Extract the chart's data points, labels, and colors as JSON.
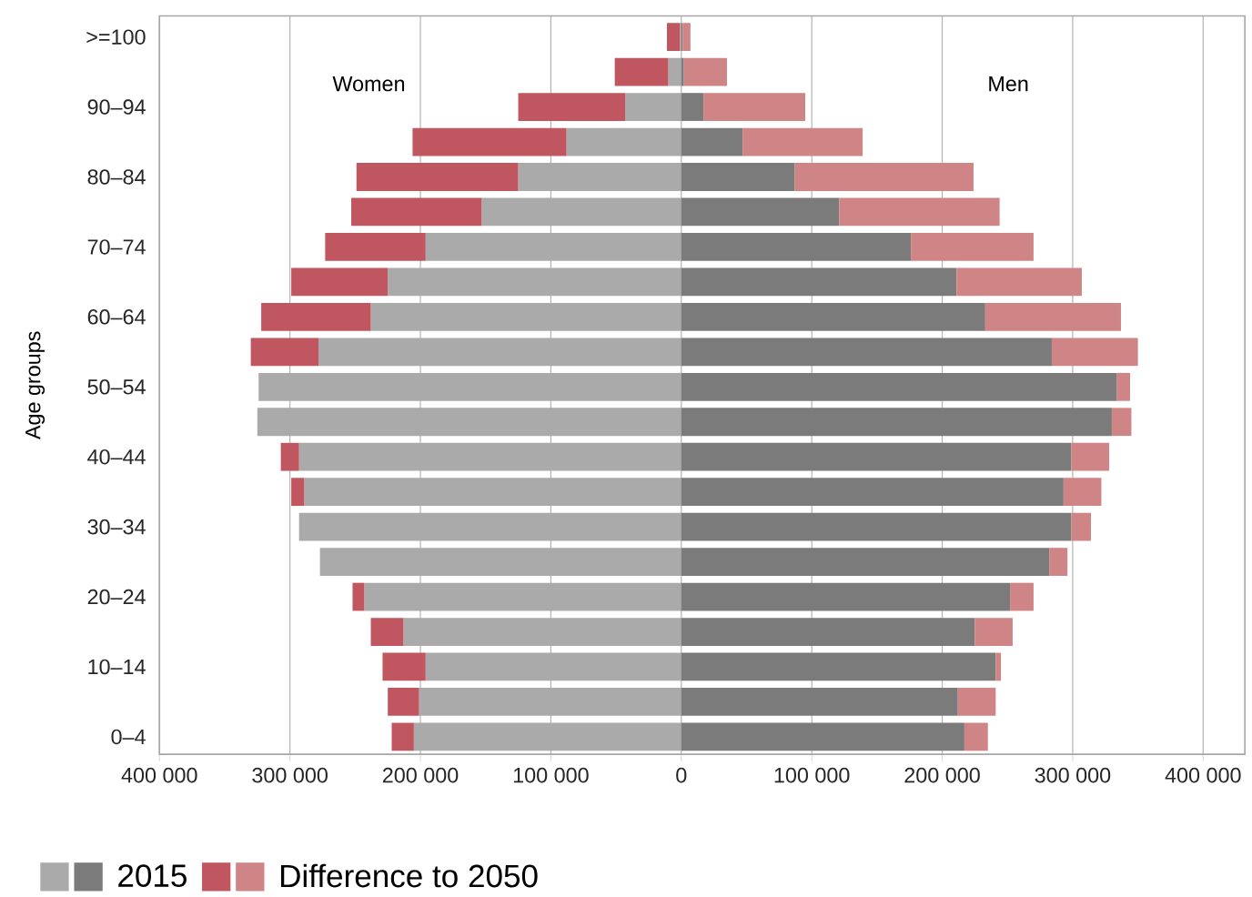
{
  "chart_data": {
    "type": "bar",
    "orientation": "horizontal",
    "stacked": true,
    "ylabel": "Age groups",
    "categories": [
      ">=100",
      null,
      "90–94",
      null,
      "80–84",
      null,
      "70–74",
      null,
      "60–64",
      null,
      "50–54",
      null,
      "40–44",
      null,
      "30–34",
      null,
      "20–24",
      null,
      "10–14",
      null,
      "0–4"
    ],
    "series": [
      {
        "color": "#aaaaaa",
        "values": [
          -1000,
          -10000,
          -43000,
          -88000,
          -125000,
          -153000,
          -196000,
          -225000,
          -238000,
          -278000,
          -324000,
          -325000,
          -293000,
          -289000,
          -293000,
          -277000,
          -243000,
          -213000,
          -196000,
          -201000,
          -205000
        ]
      },
      {
        "color": "#c0565f",
        "values": [
          -10000,
          -41000,
          -82000,
          -118000,
          -124000,
          -100000,
          -77000,
          -74000,
          -84000,
          -52000,
          null,
          null,
          -14000,
          -10000,
          null,
          null,
          -9000,
          -25000,
          -33000,
          -24000,
          -17000
        ]
      },
      {
        "name": "2015",
        "color": "#7b7b7b",
        "values": [
          1000,
          2000,
          17000,
          47000,
          87000,
          121000,
          176000,
          211000,
          233000,
          284000,
          334000,
          330000,
          299000,
          293000,
          299000,
          282000,
          252000,
          225000,
          241000,
          212000,
          217000
        ]
      },
      {
        "name": "Difference to 2050",
        "color": "#cf8486",
        "values": [
          6000,
          33000,
          78000,
          92000,
          137000,
          123000,
          94000,
          96000,
          104000,
          66000,
          10000,
          15000,
          29000,
          29000,
          15000,
          14000,
          18000,
          29000,
          4000,
          29000,
          18000
        ]
      }
    ],
    "xlim": [
      -400000,
      432000
    ],
    "xticks": [
      {
        "value": -400000,
        "label": "400 000"
      },
      {
        "value": -300000,
        "label": "300 000"
      },
      {
        "value": -200000,
        "label": "200 000"
      },
      {
        "value": -100000,
        "label": "100 000"
      },
      0,
      {
        "value": 100000,
        "label": "100 000"
      },
      {
        "value": 200000,
        "label": "200 000"
      },
      {
        "value": 300000,
        "label": "300 000"
      },
      {
        "value": 400000,
        "label": "400 000"
      }
    ],
    "grid": "x",
    "legend": "bottom left",
    "annotations": [
      "Women",
      "Men"
    ]
  }
}
